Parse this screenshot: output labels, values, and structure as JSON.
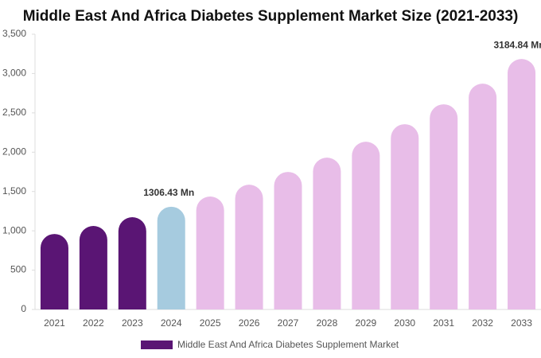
{
  "chart_data": {
    "type": "bar",
    "title": "Middle East And Africa Diabetes Supplement Market Size (2021-2033)",
    "categories": [
      "2021",
      "2022",
      "2023",
      "2024",
      "2025",
      "2026",
      "2027",
      "2028",
      "2029",
      "2030",
      "2031",
      "2032",
      "2033"
    ],
    "series": [
      {
        "name": "Middle East And Africa Diabetes Supplement Market",
        "color": "#5a1574",
        "colors": [
          "#5a1574",
          "#5a1574",
          "#5a1574",
          "#a6cbdf",
          "#e8bde8",
          "#e8bde8",
          "#e8bde8",
          "#e8bde8",
          "#e8bde8",
          "#e8bde8",
          "#e8bde8",
          "#e8bde8",
          "#e8bde8"
        ],
        "values": [
          960,
          1062,
          1173,
          1306.43,
          1436,
          1587,
          1749,
          1931,
          2133,
          2356,
          2609,
          2871,
          3184.84
        ],
        "value_labels": [
          null,
          null,
          null,
          "1306.43 Mn",
          null,
          null,
          null,
          null,
          null,
          null,
          null,
          null,
          "3184.84 Mn"
        ]
      }
    ],
    "ylim": [
      0,
      3500
    ],
    "yticks": [
      0,
      500,
      {
        "value": 1000,
        "label": "1,000"
      },
      {
        "value": 1500,
        "label": "1,500"
      },
      {
        "value": 2000,
        "label": "2,000"
      },
      {
        "value": 2500,
        "label": "2,500"
      },
      {
        "value": 3000,
        "label": "3,000"
      },
      {
        "value": 3500,
        "label": "3,500"
      }
    ],
    "legend": "bottom"
  }
}
